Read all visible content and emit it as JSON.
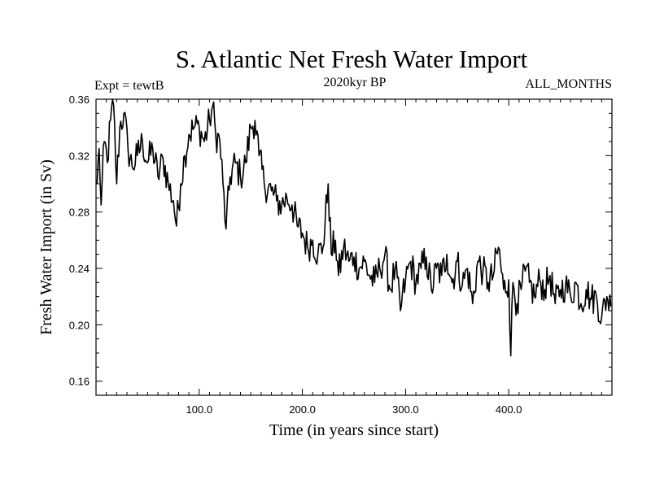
{
  "chart_data": {
    "type": "line",
    "title": "S. Atlantic Net Fresh Water Import",
    "subtitle": "2020kyr BP",
    "experiment": "Expt = tewtB",
    "months": "ALL_MONTHS",
    "xlabel": "Time (in years since start)",
    "ylabel": "Fresh Water Import (in Sv)",
    "xlim": [
      0,
      500
    ],
    "ylim": [
      0.15,
      0.36
    ],
    "xticks": [
      100,
      200,
      300,
      400
    ],
    "xtick_labels": [
      "100.0",
      "200.0",
      "300.0",
      "400.0"
    ],
    "yticks": [
      0.16,
      0.2,
      0.24,
      0.28,
      0.32,
      0.36
    ],
    "ytick_labels": [
      "0.16",
      "0.20",
      "0.24",
      "0.28",
      "0.32",
      "0.36"
    ],
    "color": "#000000",
    "series": [
      {
        "name": "tewtB",
        "anchors": [
          [
            1,
            0.3
          ],
          [
            3,
            0.325
          ],
          [
            5,
            0.285
          ],
          [
            8,
            0.33
          ],
          [
            11,
            0.315
          ],
          [
            14,
            0.345
          ],
          [
            17,
            0.356
          ],
          [
            20,
            0.3
          ],
          [
            23,
            0.34
          ],
          [
            27,
            0.35
          ],
          [
            31,
            0.325
          ],
          [
            35,
            0.312
          ],
          [
            40,
            0.32
          ],
          [
            45,
            0.33
          ],
          [
            50,
            0.315
          ],
          [
            55,
            0.325
          ],
          [
            60,
            0.305
          ],
          [
            65,
            0.318
          ],
          [
            70,
            0.3
          ],
          [
            75,
            0.288
          ],
          [
            78,
            0.27
          ],
          [
            82,
            0.3
          ],
          [
            86,
            0.32
          ],
          [
            90,
            0.335
          ],
          [
            95,
            0.34
          ],
          [
            100,
            0.34
          ],
          [
            105,
            0.33
          ],
          [
            110,
            0.345
          ],
          [
            113,
            0.355
          ],
          [
            116,
            0.335
          ],
          [
            120,
            0.33
          ],
          [
            123,
            0.3
          ],
          [
            126,
            0.268
          ],
          [
            130,
            0.305
          ],
          [
            135,
            0.315
          ],
          [
            140,
            0.305
          ],
          [
            145,
            0.315
          ],
          [
            150,
            0.34
          ],
          [
            154,
            0.345
          ],
          [
            158,
            0.32
          ],
          [
            163,
            0.3
          ],
          [
            170,
            0.295
          ],
          [
            175,
            0.288
          ],
          [
            180,
            0.285
          ],
          [
            185,
            0.29
          ],
          [
            190,
            0.285
          ],
          [
            195,
            0.27
          ],
          [
            200,
            0.265
          ],
          [
            205,
            0.255
          ],
          [
            210,
            0.26
          ],
          [
            215,
            0.25
          ],
          [
            220,
            0.255
          ],
          [
            225,
            0.3
          ],
          [
            228,
            0.25
          ],
          [
            232,
            0.26
          ],
          [
            235,
            0.235
          ],
          [
            240,
            0.255
          ],
          [
            245,
            0.245
          ],
          [
            250,
            0.248
          ],
          [
            255,
            0.24
          ],
          [
            260,
            0.245
          ],
          [
            265,
            0.235
          ],
          [
            270,
            0.23
          ],
          [
            275,
            0.24
          ],
          [
            280,
            0.25
          ],
          [
            285,
            0.225
          ],
          [
            290,
            0.24
          ],
          [
            295,
            0.21
          ],
          [
            300,
            0.232
          ],
          [
            305,
            0.245
          ],
          [
            310,
            0.23
          ],
          [
            315,
            0.24
          ],
          [
            320,
            0.248
          ],
          [
            325,
            0.225
          ],
          [
            330,
            0.24
          ],
          [
            335,
            0.235
          ],
          [
            340,
            0.25
          ],
          [
            345,
            0.23
          ],
          [
            350,
            0.245
          ],
          [
            355,
            0.228
          ],
          [
            360,
            0.24
          ],
          [
            365,
            0.215
          ],
          [
            370,
            0.245
          ],
          [
            375,
            0.238
          ],
          [
            380,
            0.23
          ],
          [
            385,
            0.235
          ],
          [
            390,
            0.255
          ],
          [
            395,
            0.225
          ],
          [
            400,
            0.232
          ],
          [
            402,
            0.178
          ],
          [
            404,
            0.23
          ],
          [
            408,
            0.215
          ],
          [
            412,
            0.225
          ],
          [
            416,
            0.238
          ],
          [
            420,
            0.23
          ],
          [
            425,
            0.22
          ],
          [
            430,
            0.232
          ],
          [
            435,
            0.225
          ],
          [
            440,
            0.235
          ],
          [
            445,
            0.215
          ],
          [
            450,
            0.225
          ],
          [
            455,
            0.228
          ],
          [
            460,
            0.22
          ],
          [
            465,
            0.23
          ],
          [
            470,
            0.215
          ],
          [
            475,
            0.225
          ],
          [
            480,
            0.218
          ],
          [
            485,
            0.22
          ],
          [
            490,
            0.205
          ],
          [
            495,
            0.22
          ],
          [
            499,
            0.213
          ]
        ]
      }
    ]
  }
}
